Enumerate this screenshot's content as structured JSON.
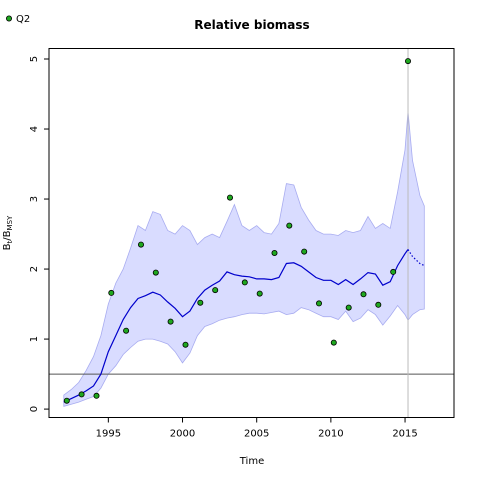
{
  "chart_data": {
    "type": "line",
    "title": "Relative biomass",
    "xlabel": "Time",
    "ylabel_main": "B",
    "ylabel_sub1": "t",
    "ylabel_mid": "/B",
    "ylabel_sub2": "MSY",
    "xlim": [
      1991.0,
      2018.3
    ],
    "ylim": [
      -0.12,
      5.15
    ],
    "x_ticks": [
      1995,
      2000,
      2005,
      2010,
      2015
    ],
    "y_ticks": [
      0,
      1,
      2,
      3,
      4,
      5
    ],
    "grid": false,
    "legend": {
      "position": "top-left",
      "entries": [
        {
          "label": "Q2",
          "color": "#2ca02c"
        }
      ]
    },
    "colors": {
      "line": "#0000cc",
      "band": "#d9dcff",
      "band_edge": "#a8acf0",
      "points": "#1fa81f",
      "hline": "#555555",
      "vline": "#bbbbbb"
    },
    "reference_line_y": 0.5,
    "reference_line_x": 2015.2,
    "observations": {
      "name": "Q2",
      "x": [
        1992.2,
        1993.2,
        1994.2,
        1995.2,
        1996.2,
        1997.2,
        1998.2,
        1999.2,
        2000.2,
        2001.2,
        2002.2,
        2003.2,
        2004.2,
        2005.2,
        2006.2,
        2007.2,
        2008.2,
        2009.2,
        2010.2,
        2011.2,
        2012.2,
        2013.2,
        2014.2,
        2015.2
      ],
      "y": [
        0.12,
        0.21,
        0.19,
        1.66,
        1.12,
        2.35,
        1.95,
        1.25,
        0.92,
        1.52,
        1.7,
        3.02,
        1.81,
        1.65,
        2.23,
        2.62,
        2.25,
        1.51,
        0.95,
        1.45,
        1.64,
        1.49,
        1.96,
        4.97
      ]
    },
    "estimate": {
      "x": [
        1992,
        1992.5,
        1993,
        1993.5,
        1994,
        1994.5,
        1995,
        1995.5,
        1996,
        1996.5,
        1997,
        1997.5,
        1998,
        1998.5,
        1999,
        1999.5,
        2000,
        2000.5,
        2001,
        2001.5,
        2002,
        2002.5,
        2003,
        2003.5,
        2004,
        2004.5,
        2005,
        2005.5,
        2006,
        2006.5,
        2007,
        2007.5,
        2008,
        2008.5,
        2009,
        2009.5,
        2010,
        2010.5,
        2011,
        2011.5,
        2012,
        2012.5,
        2013,
        2013.5,
        2014,
        2014.5,
        2015,
        2015.2
      ],
      "y": [
        0.1,
        0.15,
        0.2,
        0.26,
        0.33,
        0.5,
        0.82,
        1.05,
        1.28,
        1.45,
        1.58,
        1.62,
        1.67,
        1.63,
        1.53,
        1.44,
        1.32,
        1.4,
        1.58,
        1.7,
        1.77,
        1.83,
        1.96,
        1.92,
        1.9,
        1.89,
        1.86,
        1.86,
        1.85,
        1.88,
        2.08,
        2.09,
        2.04,
        1.96,
        1.88,
        1.84,
        1.84,
        1.78,
        1.85,
        1.78,
        1.86,
        1.95,
        1.93,
        1.77,
        1.82,
        2.05,
        2.22,
        2.28
      ]
    },
    "forecast": {
      "x": [
        2015.2,
        2015.5,
        2016.0,
        2016.3
      ],
      "y": [
        2.28,
        2.18,
        2.08,
        2.05
      ]
    },
    "ci_upper": {
      "x": [
        1992,
        1992.5,
        1993,
        1993.5,
        1994,
        1994.5,
        1995,
        1995.5,
        1996,
        1996.5,
        1997,
        1997.5,
        1998,
        1998.5,
        1999,
        1999.5,
        2000,
        2000.5,
        2001,
        2001.5,
        2002,
        2002.5,
        2003,
        2003.5,
        2004,
        2004.5,
        2005,
        2005.5,
        2006,
        2006.5,
        2007,
        2007.5,
        2008,
        2008.5,
        2009,
        2009.5,
        2010,
        2010.5,
        2011,
        2011.5,
        2012,
        2012.5,
        2013,
        2013.5,
        2014,
        2014.5,
        2015,
        2015.2,
        2015.5,
        2016.0,
        2016.3
      ],
      "y": [
        0.2,
        0.28,
        0.38,
        0.55,
        0.75,
        1.05,
        1.5,
        1.8,
        2.0,
        2.3,
        2.62,
        2.55,
        2.82,
        2.78,
        2.55,
        2.5,
        2.62,
        2.55,
        2.35,
        2.45,
        2.5,
        2.45,
        2.68,
        2.92,
        2.62,
        2.55,
        2.62,
        2.52,
        2.5,
        2.65,
        3.22,
        3.2,
        2.88,
        2.7,
        2.55,
        2.5,
        2.5,
        2.48,
        2.55,
        2.52,
        2.55,
        2.75,
        2.58,
        2.65,
        2.58,
        3.1,
        3.7,
        4.25,
        3.55,
        3.05,
        2.9
      ]
    },
    "ci_lower": {
      "x": [
        1992,
        1992.5,
        1993,
        1993.5,
        1994,
        1994.5,
        1995,
        1995.5,
        1996,
        1996.5,
        1997,
        1997.5,
        1998,
        1998.5,
        1999,
        1999.5,
        2000,
        2000.5,
        2001,
        2001.5,
        2002,
        2002.5,
        2003,
        2003.5,
        2004,
        2004.5,
        2005,
        2005.5,
        2006,
        2006.5,
        2007,
        2007.5,
        2008,
        2008.5,
        2009,
        2009.5,
        2010,
        2010.5,
        2011,
        2011.5,
        2012,
        2012.5,
        2013,
        2013.5,
        2014,
        2014.5,
        2015,
        2015.2,
        2015.5,
        2016.0,
        2016.3
      ],
      "y": [
        0.04,
        0.07,
        0.1,
        0.14,
        0.18,
        0.3,
        0.5,
        0.62,
        0.78,
        0.88,
        0.97,
        1.0,
        1.0,
        0.97,
        0.93,
        0.82,
        0.66,
        0.8,
        1.05,
        1.18,
        1.22,
        1.27,
        1.3,
        1.32,
        1.35,
        1.37,
        1.37,
        1.36,
        1.38,
        1.4,
        1.35,
        1.37,
        1.45,
        1.42,
        1.37,
        1.32,
        1.32,
        1.28,
        1.4,
        1.25,
        1.3,
        1.42,
        1.35,
        1.2,
        1.33,
        1.48,
        1.35,
        1.27,
        1.35,
        1.42,
        1.43
      ]
    }
  }
}
